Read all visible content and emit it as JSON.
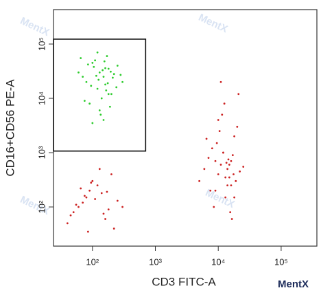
{
  "chart_data": {
    "type": "scatter",
    "x_label": "CD3 FITC-A",
    "y_label": "CD16+CD56 PE-A",
    "log_x": true,
    "log_y": true,
    "xlim": [
      24,
      370000
    ],
    "ylim": [
      19,
      430000
    ],
    "xticks": [
      {
        "value": 100,
        "label": "10²"
      },
      {
        "value": 1000,
        "label": "10³"
      },
      {
        "value": 10000,
        "label": "10⁴"
      },
      {
        "value": 100000,
        "label": "10⁵"
      }
    ],
    "yticks": [
      {
        "value": 100,
        "label": "10²"
      },
      {
        "value": 1000,
        "label": "10³"
      },
      {
        "value": 10000,
        "label": "10⁴"
      },
      {
        "value": 100000,
        "label": "10⁵"
      }
    ],
    "gate": {
      "x": [
        24,
        700
      ],
      "y": [
        1070,
        123000
      ]
    },
    "watermark": "MentX",
    "series": [
      {
        "color": "#2ecc2e",
        "x": [
          60,
          80,
          100,
          120,
          150,
          180,
          200,
          250,
          300,
          90,
          110,
          130,
          160,
          170,
          140,
          70,
          220,
          190,
          105,
          125,
          145,
          165,
          85,
          95,
          115,
          135,
          155,
          175,
          195,
          210,
          75,
          65,
          240,
          280,
          100,
          150,
          120,
          180,
          130,
          160
        ],
        "y": [
          30000,
          20000,
          45000,
          15000,
          25000,
          35000,
          12000,
          40000,
          20000,
          8000,
          50000,
          30000,
          18000,
          60000,
          10000,
          25000,
          28000,
          7000,
          38000,
          22000,
          33000,
          14000,
          42000,
          17000,
          26000,
          5000,
          48000,
          19000,
          31000,
          24000,
          9000,
          55000,
          16000,
          27000,
          3500,
          4000,
          70000,
          12000,
          6000,
          36000
        ]
      },
      {
        "color": "#cc2222",
        "x": [
          5000,
          6000,
          7000,
          8000,
          9000,
          10000,
          11000,
          12000,
          13000,
          14000,
          15000,
          16000,
          17000,
          18000,
          20000,
          22000,
          25000,
          8500,
          9500,
          10500,
          11500,
          12500,
          13500,
          14500,
          15500,
          16500,
          17500,
          19000,
          21000,
          7500,
          6500,
          12000,
          14000,
          16000,
          10000,
          13000,
          15000,
          18000,
          11000,
          9000
        ],
        "y": [
          300,
          500,
          800,
          1200,
          200,
          400,
          600,
          1000,
          150,
          250,
          350,
          700,
          900,
          2000,
          3000,
          450,
          550,
          100,
          1500,
          2500,
          5000,
          8000,
          650,
          750,
          80,
          60,
          400,
          300,
          12000,
          200,
          1800,
          1000,
          500,
          250,
          4000,
          350,
          600,
          150,
          20000,
          700
        ]
      },
      {
        "color": "#cc2222",
        "x": [
          40,
          50,
          60,
          70,
          80,
          90,
          100,
          120,
          140,
          160,
          180,
          200,
          250,
          45,
          55,
          65,
          75,
          85,
          95,
          110,
          130,
          150,
          170,
          220,
          300
        ],
        "y": [
          50,
          80,
          100,
          120,
          150,
          200,
          300,
          250,
          180,
          60,
          90,
          400,
          130,
          70,
          110,
          220,
          160,
          35,
          280,
          140,
          500,
          75,
          190,
          40,
          100
        ]
      }
    ]
  }
}
